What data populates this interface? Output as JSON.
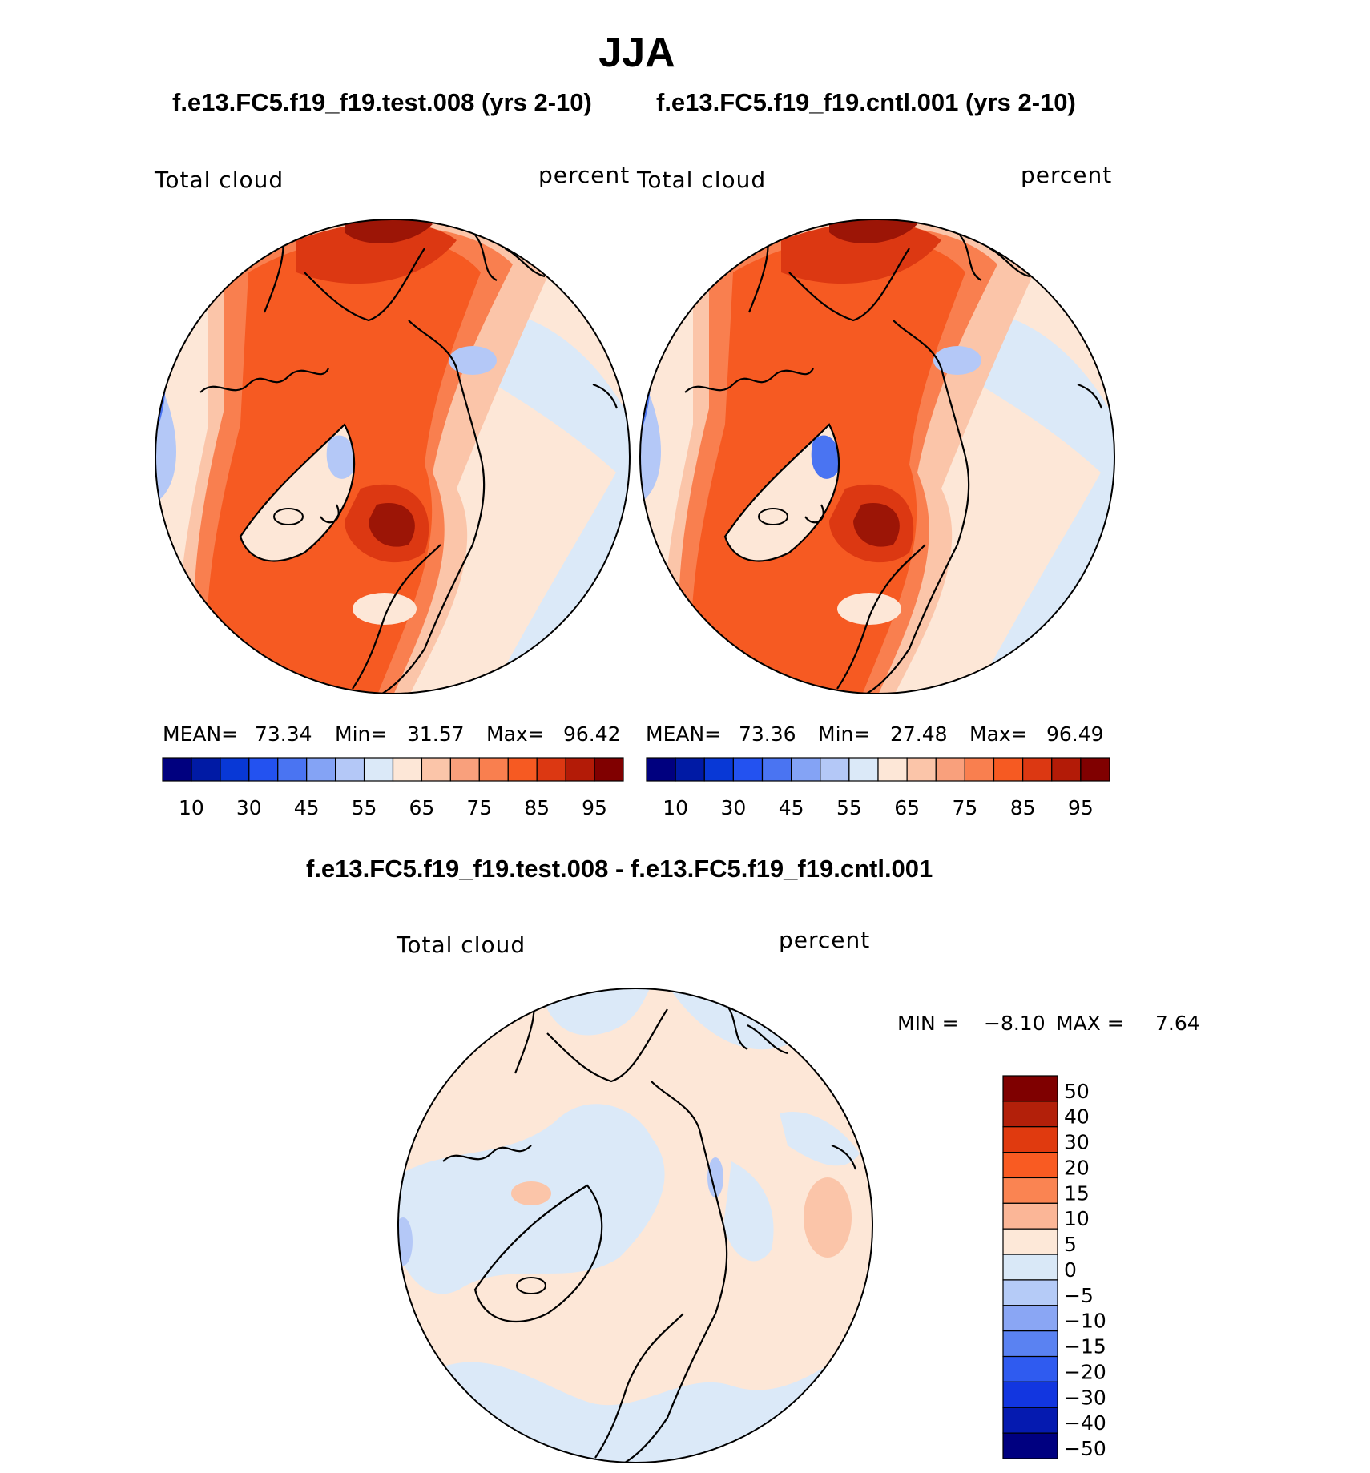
{
  "page": {
    "title": "JJA",
    "left_panel_title": "f.e13.FC5.f19_f19.test.008 (yrs 2-10)",
    "right_panel_title": "f.e13.FC5.f19_f19.cntl.001 (yrs 2-10)",
    "diff_panel_title": "f.e13.FC5.f19_f19.test.008 - f.e13.FC5.f19_f19.cntl.001"
  },
  "panels": {
    "left": {
      "variable": "Total cloud",
      "units": "percent",
      "mean_label": "MEAN=",
      "mean": "73.34",
      "min_label": "Min=",
      "min": "31.57",
      "max_label": "Max=",
      "max": "96.42"
    },
    "right": {
      "variable": "Total cloud",
      "units": "percent",
      "mean_label": "MEAN=",
      "mean": "73.36",
      "min_label": "Min=",
      "min": "27.48",
      "max_label": "Max=",
      "max": "96.49"
    },
    "diff": {
      "variable": "Total cloud",
      "units": "percent",
      "min_label": "MIN =",
      "min": "−8.10",
      "max_label": "MAX =",
      "max": "7.64"
    }
  },
  "colorbar_abs": {
    "colors": [
      "#00007f",
      "#001aa5",
      "#0838d6",
      "#2352f0",
      "#4a74f2",
      "#84a3f5",
      "#b4c8f7",
      "#dbe9f8",
      "#fde7d7",
      "#fbc5a9",
      "#f9a07c",
      "#f97f4f",
      "#f65a22",
      "#dc3812",
      "#b31b07",
      "#800000"
    ],
    "tick_labels": [
      "10",
      "30",
      "45",
      "55",
      "65",
      "75",
      "85",
      "95"
    ]
  },
  "colorbar_diff": {
    "colors": [
      "#7f0000",
      "#b3200a",
      "#e03a0f",
      "#f95b22",
      "#fa8452",
      "#fbb697",
      "#fde8d8",
      "#d9e8f7",
      "#b5cbf7",
      "#8aa6f4",
      "#5a82f2",
      "#2f5bf0",
      "#1236e0",
      "#051ab0",
      "#000080"
    ],
    "tick_labels": [
      "50",
      "40",
      "30",
      "20",
      "15",
      "10",
      "5",
      "0",
      "−5",
      "−10",
      "−15",
      "−20",
      "−30",
      "−40",
      "−50"
    ]
  },
  "map_colors": {
    "dark_red": "#9c1506",
    "red": "#dc3812",
    "orange_red": "#f65a22",
    "orange": "#f97f4f",
    "salmon": "#fbc5a9",
    "peach": "#fde7d7",
    "pale_blue": "#dbe9f8",
    "light_blue": "#b4c8f7",
    "blue": "#4a74f2",
    "dark_blue": "#2352f0"
  }
}
